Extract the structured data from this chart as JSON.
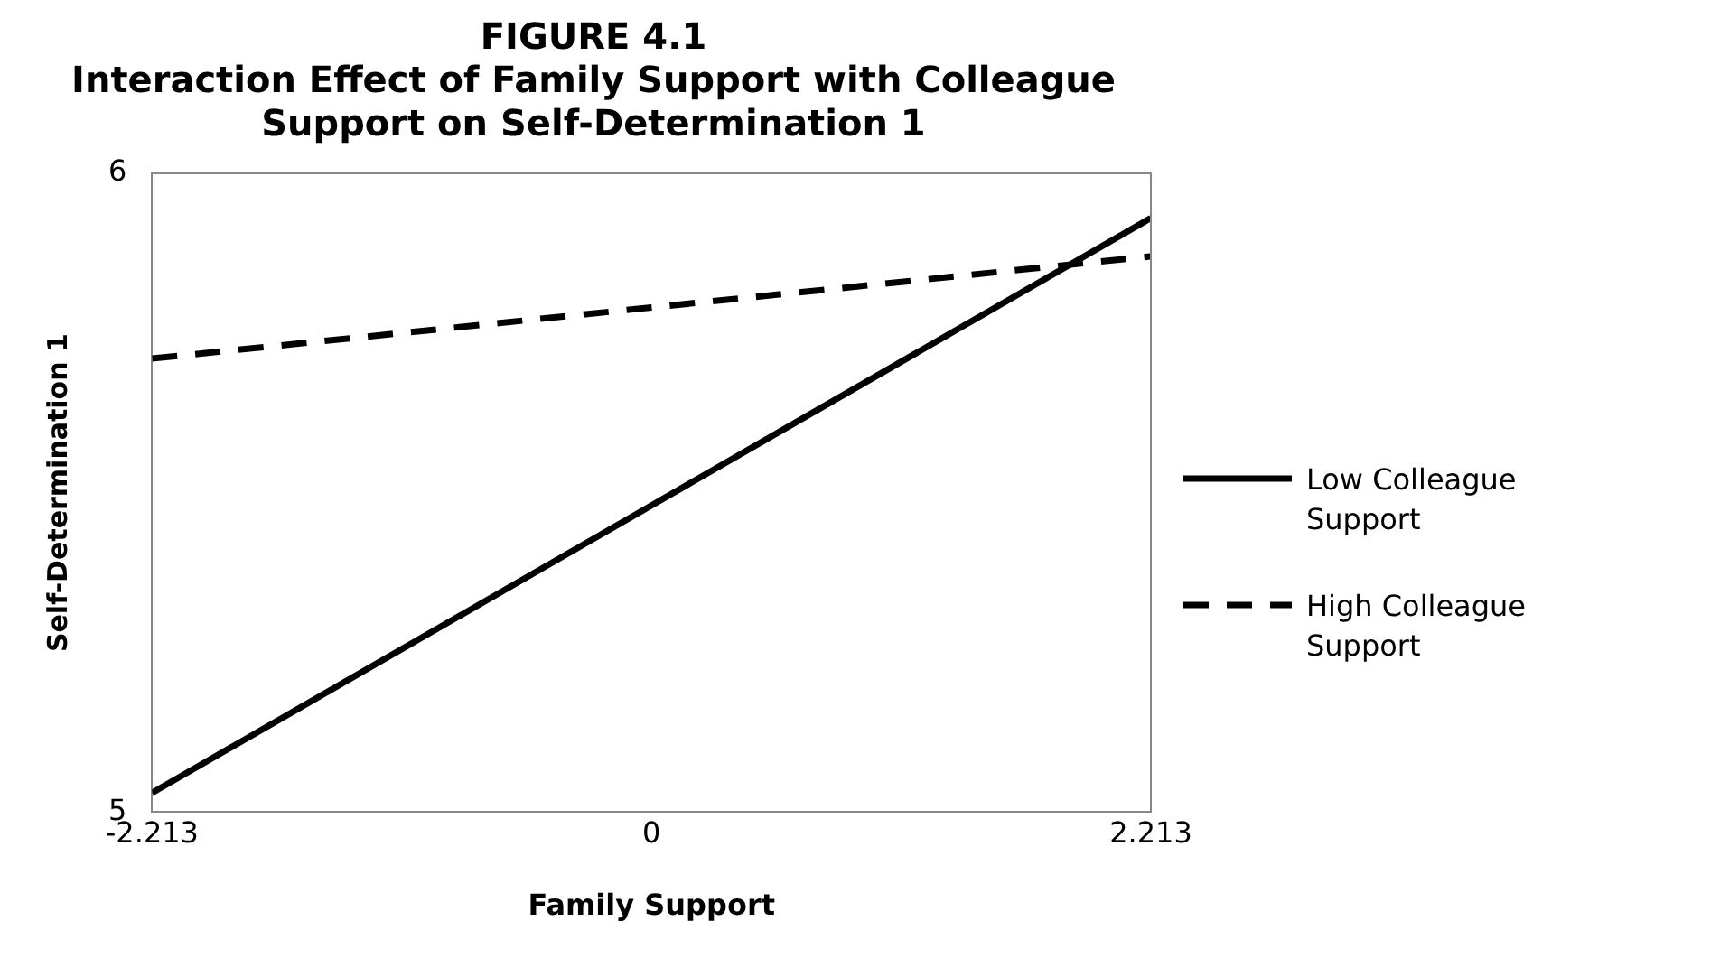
{
  "chart_data": {
    "type": "line",
    "title": [
      "FIGURE 4.1",
      "Interaction Effect of Family Support with Colleague",
      "Support on Self-Determination 1"
    ],
    "xlabel": "Family Support",
    "ylabel": "Self-Determination 1",
    "x": [
      -2.213,
      0,
      2.213
    ],
    "series": [
      {
        "name": "Low Colleague Support",
        "color": "#000000",
        "values": [
          5.03,
          5.48,
          5.93
        ],
        "line_style": "solid"
      },
      {
        "name": "High Colleague Support",
        "color": "#000000",
        "values": [
          5.71,
          5.79,
          5.87
        ],
        "line_style": "dashed"
      }
    ],
    "xlim": [
      -2.213,
      2.213
    ],
    "xticks": [
      -2.213,
      0,
      2.213
    ],
    "ylim": [
      5,
      6
    ],
    "yticks": [
      5,
      6
    ],
    "grid": false,
    "legend": "right",
    "marker": "none"
  }
}
